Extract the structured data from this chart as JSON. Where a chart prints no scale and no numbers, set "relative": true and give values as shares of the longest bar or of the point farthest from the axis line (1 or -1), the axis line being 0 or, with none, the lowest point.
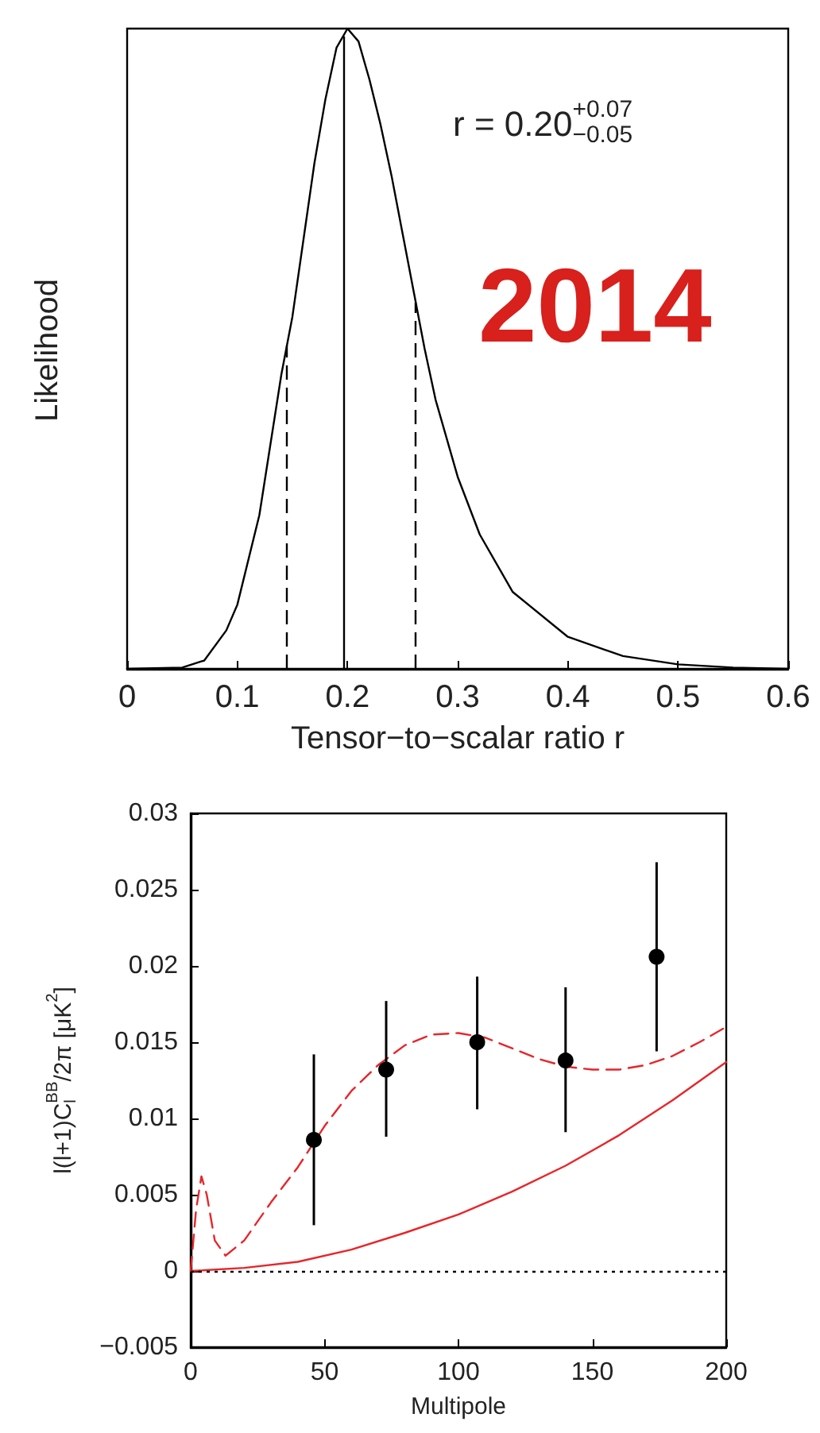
{
  "chart_data": [
    {
      "type": "line",
      "relative": true,
      "xlabel": "Tensor−to−scalar ratio r",
      "ylabel": "Likelihood",
      "xlim": [
        0,
        0.6
      ],
      "xticks": [
        0,
        0.1,
        0.2,
        0.3,
        0.4,
        0.5,
        0.6
      ],
      "tick_labels": "x",
      "grid": false,
      "marker": "none",
      "annotations": [
        "r = 0.20$^{+0.07}$$_{−0.05}$",
        "2014"
      ],
      "series": [
        {
          "color": "#000000",
          "line_style": "solid",
          "x": [
            0,
            0.05,
            0.07,
            0.09,
            0.1,
            0.12,
            0.14,
            0.15,
            0.16,
            0.17,
            0.18,
            0.19,
            0.2,
            0.21,
            0.22,
            0.23,
            0.24,
            0.25,
            0.26,
            0.27,
            0.28,
            0.3,
            0.32,
            0.35,
            0.4,
            0.45,
            0.5,
            0.55,
            0.6
          ],
          "values": [
            0,
            0.002,
            0.013,
            0.06,
            0.1,
            0.24,
            0.46,
            0.55,
            0.67,
            0.79,
            0.89,
            0.97,
            1,
            0.98,
            0.92,
            0.85,
            0.77,
            0.68,
            0.59,
            0.5,
            0.42,
            0.3,
            0.21,
            0.12,
            0.05,
            0.02,
            0.007,
            0.002,
            0
          ]
        }
      ],
      "ref_lines": [
        {
          "axis": "x",
          "value": 0.145,
          "color": "#000000",
          "line_style": "dashed"
        },
        {
          "axis": "x",
          "value": 0.196,
          "color": "#000000",
          "line_style": "solid"
        },
        {
          "axis": "x",
          "value": 0.262,
          "color": "#000000",
          "line_style": "dashed"
        }
      ]
    },
    {
      "type": "line",
      "xlabel": "Multipole",
      "ylabel": "l(l+1)C$^{BB}$$_{l}$/2π [μK$^{2}$]",
      "xlim": [
        0,
        200
      ],
      "xticks": [
        0,
        50,
        100,
        150,
        200
      ],
      "ylim": [
        -0.005,
        0.03
      ],
      "yticks": [
        {
          "value": -0.005,
          "label": "−0.005"
        },
        0,
        0.005,
        0.01,
        0.015,
        0.02,
        0.025,
        0.03
      ],
      "grid": false,
      "series": [
        {
          "color": "#e8252a",
          "line_style": "dashed",
          "marker": "none",
          "x": [
            0,
            2,
            4,
            6,
            9,
            13,
            20,
            30,
            40,
            50,
            60,
            70,
            80,
            90,
            100,
            110,
            120,
            130,
            140,
            150,
            160,
            170,
            180,
            190,
            200
          ],
          "values": [
            0,
            0.004,
            0.0062,
            0.005,
            0.002,
            0.001,
            0.002,
            0.0045,
            0.0068,
            0.0095,
            0.0118,
            0.0135,
            0.0148,
            0.0155,
            0.0156,
            0.0153,
            0.0146,
            0.0139,
            0.0134,
            0.0132,
            0.0132,
            0.0135,
            0.0141,
            0.015,
            0.016
          ]
        },
        {
          "color": "#e8252a",
          "line_style": "solid",
          "marker": "none",
          "x": [
            0,
            20,
            40,
            60,
            80,
            100,
            120,
            140,
            160,
            180,
            200
          ],
          "values": [
            0,
            0.0002,
            0.0006,
            0.0014,
            0.0025,
            0.0037,
            0.0052,
            0.0069,
            0.0089,
            0.0112,
            0.0137
          ]
        },
        {
          "type": "scatter",
          "color": "#000000",
          "marker": "circle",
          "x": [
            46,
            73,
            107,
            140,
            174
          ],
          "values": [
            0.0086,
            0.0132,
            0.015,
            0.0138,
            0.0206
          ],
          "errors": [
            [
              0.003,
              0.0142
            ],
            [
              0.0088,
              0.0177
            ],
            [
              0.0106,
              0.0193
            ],
            [
              0.0091,
              0.0186
            ],
            [
              0.0144,
              0.0268
            ]
          ]
        }
      ],
      "ref_lines": [
        {
          "axis": "y",
          "value": 0,
          "color": "#000000",
          "line_style": "dotted"
        }
      ]
    }
  ]
}
